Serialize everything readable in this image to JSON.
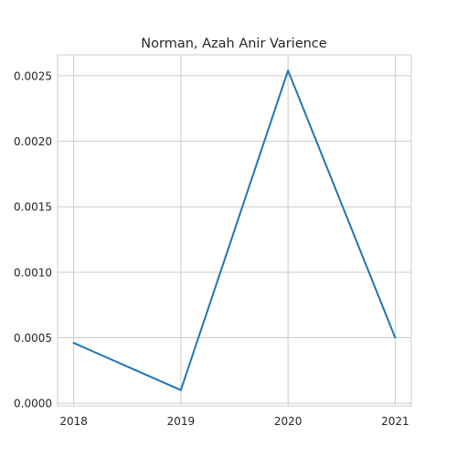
{
  "chart_data": {
    "type": "line",
    "title": "Norman, Azah Anir Varience",
    "xlabel": "",
    "ylabel": "",
    "x": [
      "2018",
      "2019",
      "2020",
      "2021"
    ],
    "series": [
      {
        "values": [
          0.00046,
          0.0001,
          0.00254,
          0.0005
        ]
      }
    ],
    "xlim": [
      2017.85,
      2021.15
    ],
    "ylim": [
      -2e-05,
      0.00266
    ],
    "x_ticks": [
      "2018",
      "2019",
      "2020",
      "2021"
    ],
    "y_ticks": [
      "0.0000",
      "0.0005",
      "0.0010",
      "0.0015",
      "0.0020",
      "0.0025"
    ],
    "grid": true,
    "legend": false,
    "colors": {
      "line": "#1f77b4",
      "grid": "#cccccc",
      "axes": "#cccccc"
    }
  }
}
